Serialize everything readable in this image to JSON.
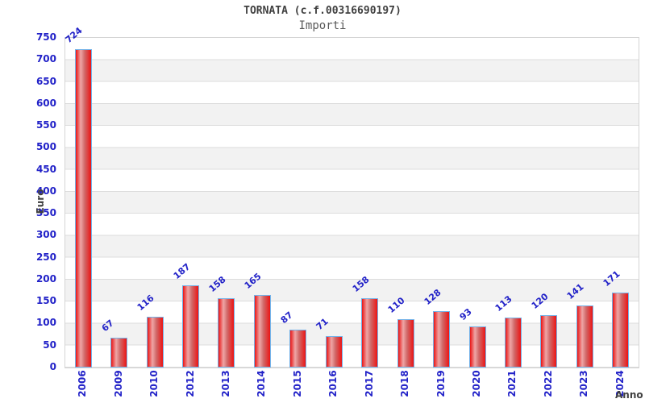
{
  "chart_data": {
    "type": "bar",
    "title": "TORNATA (c.f.00316690197)",
    "subtitle": "Importi",
    "xlabel": "Anno",
    "ylabel": "Euro",
    "categories": [
      "2006",
      "2009",
      "2010",
      "2012",
      "2013",
      "2014",
      "2015",
      "2016",
      "2017",
      "2018",
      "2019",
      "2020",
      "2021",
      "2022",
      "2023",
      "2024"
    ],
    "values": [
      724,
      67,
      116,
      187,
      158,
      165,
      87,
      71,
      158,
      110,
      128,
      93,
      113,
      120,
      141,
      171
    ],
    "ylim": [
      0,
      750
    ],
    "ytick_step": 50,
    "yticks": [
      0,
      50,
      100,
      150,
      200,
      250,
      300,
      350,
      400,
      450,
      500,
      550,
      600,
      650,
      700,
      750
    ],
    "grid": "horizontal-gridlines-with-alternating-bands",
    "legend": "none",
    "colors": {
      "bar_fill": "#ec1414",
      "bar_highlight": "#efa6a6",
      "bar_border": "#74b2e8",
      "value_label": "#2222c8",
      "tick_label": "#2222c8",
      "axis_title": "#404040",
      "title": "#404040",
      "subtitle": "#5a5a5a",
      "band": "#f2f2f2",
      "gridline": "#dcdcdc",
      "plot_border": "#d4d4d4",
      "background": "#ffffff"
    }
  }
}
